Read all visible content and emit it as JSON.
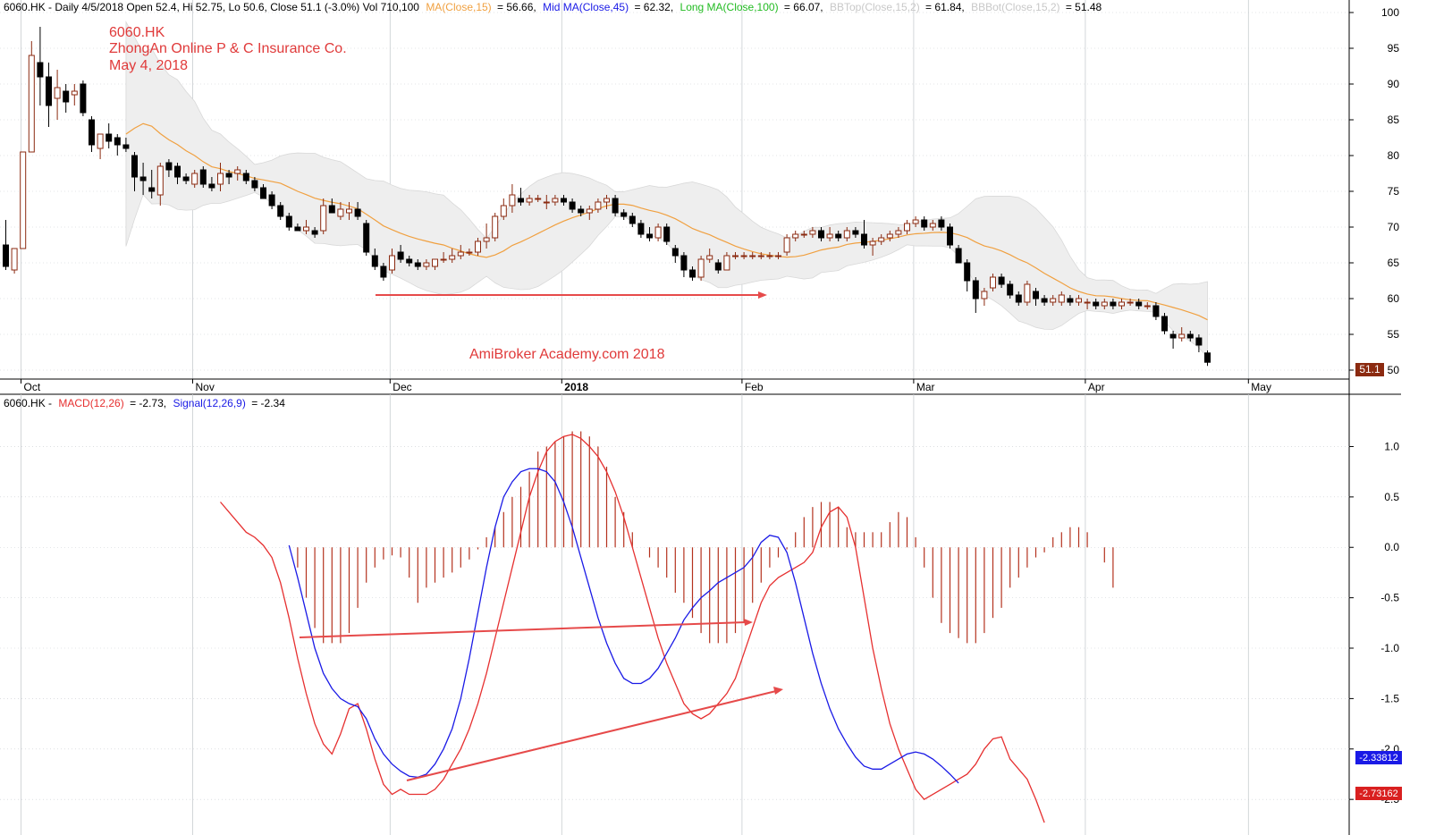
{
  "window": {
    "background": "#ffffff",
    "grid_color": "#c8ccd0",
    "axis_color": "#000000"
  },
  "price_header": {
    "symbol_info": "6060.HK - Daily 4/5/2018 Open 52.4, Hi 52.75, Lo 50.6, Close 51.1 (-3.0%) Vol 710,100",
    "ma15": "MA(Close,15)",
    "ma15_value": "= 56.66,",
    "mid_ma": "Mid MA(Close,45)",
    "mid_ma_value": "= 62.32,",
    "long_ma": "Long MA(Close,100)",
    "long_ma_value": "= 66.07,",
    "bbtop": "BBTop(Close,15,2)",
    "bbtop_value": "= 61.84,",
    "bbbot": "BBBot(Close,15,2)",
    "bbbot_value": "= 51.48",
    "colors": {
      "ma15": "#f0a040",
      "mid_ma": "#1a1ae6",
      "long_ma": "#22bb22",
      "bb": "#c8c8c8"
    }
  },
  "annotations": {
    "symbol": "6060.HK",
    "company": "ZhongAn Online P & C Insurance Co.",
    "date": "May 4, 2018",
    "watermark": "AmiBroker Academy.com   2018",
    "color": "#e03a3a"
  },
  "macd_header": {
    "prefix": "6060.HK -",
    "macd": "MACD(12,26)",
    "macd_value": "= -2.73,",
    "signal": "Signal(12,26,9)",
    "signal_value": "= -2.34",
    "colors": {
      "macd": "#e63030",
      "signal": "#1a1ae6",
      "histogram": "#b4321e"
    }
  },
  "badges": {
    "price": "51.1",
    "signal": "-2.33812",
    "macd": "-2.73162"
  },
  "chart_data": [
    {
      "type": "candlestick",
      "title": "6060.HK",
      "x_ticks": [
        "Oct",
        "Nov",
        "Dec",
        "2018",
        "Feb",
        "Mar",
        "Apr",
        "May"
      ],
      "x_tick_index": [
        0,
        20,
        43,
        63,
        84,
        104,
        124,
        143
      ],
      "y_ticks": [
        50,
        55,
        60,
        65,
        70,
        75,
        80,
        85,
        90,
        95,
        100
      ],
      "ylim": [
        49,
        101
      ],
      "last_close": 51.1,
      "colors": {
        "up_body": "#ffffff",
        "up_border": "#8b2a10",
        "down": "#000000",
        "band_fill": "#eeeeee",
        "ma15": "#f0a040"
      },
      "ohlc": [
        [
          67.5,
          71,
          64,
          64.5
        ],
        [
          64,
          67,
          63.5,
          67
        ],
        [
          67,
          80.5,
          67,
          80.5
        ],
        [
          80.5,
          96,
          80.5,
          94
        ],
        [
          93,
          98,
          87,
          91
        ],
        [
          91,
          93,
          84,
          87
        ],
        [
          88,
          92,
          85,
          89.5
        ],
        [
          89,
          90,
          86,
          87.5
        ],
        [
          88.5,
          90,
          87,
          89
        ],
        [
          90,
          90.5,
          85.5,
          86
        ],
        [
          85,
          85.5,
          80.5,
          81.5
        ],
        [
          81,
          82.5,
          79.5,
          83
        ],
        [
          83,
          84.5,
          81,
          82
        ],
        [
          82.5,
          83,
          80,
          81.5
        ],
        [
          81.5,
          82.5,
          80.5,
          81
        ],
        [
          80,
          80.5,
          75,
          77
        ],
        [
          77,
          79,
          74.5,
          76.5
        ],
        [
          75.5,
          78,
          74,
          75
        ],
        [
          74.5,
          79,
          73,
          78.5
        ],
        [
          79,
          79.5,
          77,
          78
        ],
        [
          78.5,
          79,
          76,
          77
        ],
        [
          77,
          77.5,
          76,
          76.5
        ],
        [
          76,
          78,
          75.5,
          77.5
        ],
        [
          78,
          78.5,
          75.5,
          76
        ],
        [
          76,
          77,
          75,
          75.5
        ],
        [
          76,
          79,
          75,
          77.5
        ],
        [
          77.5,
          78,
          76,
          77
        ],
        [
          77.5,
          78.5,
          76.5,
          78
        ],
        [
          77.5,
          78,
          76,
          76.5
        ],
        [
          76.5,
          77,
          75,
          75.5
        ],
        [
          75.5,
          76,
          74,
          74
        ],
        [
          74.5,
          75,
          72.5,
          73
        ],
        [
          73,
          73.5,
          71,
          71.5
        ],
        [
          71.5,
          72,
          69.5,
          70
        ],
        [
          70,
          70.5,
          69.5,
          69.5
        ],
        [
          69.5,
          71,
          69,
          70
        ],
        [
          69.5,
          70,
          68.5,
          69
        ],
        [
          69.5,
          74,
          69,
          73
        ],
        [
          73,
          74,
          72,
          72
        ],
        [
          71.5,
          73.5,
          71,
          72.5
        ],
        [
          72,
          73.5,
          71,
          72.5
        ],
        [
          72.5,
          73.5,
          71,
          71.5
        ],
        [
          70.5,
          71,
          66,
          66.5
        ],
        [
          66,
          67,
          64,
          64.5
        ],
        [
          64.5,
          65,
          62.5,
          63
        ],
        [
          64,
          67,
          63.5,
          66
        ],
        [
          66.5,
          67.5,
          65,
          65.5
        ],
        [
          65.5,
          66,
          64.5,
          65
        ],
        [
          65,
          65.5,
          64,
          64.5
        ],
        [
          64.5,
          65.5,
          64,
          65
        ],
        [
          64.5,
          65.5,
          64,
          65.5
        ],
        [
          65.5,
          66.5,
          65,
          65.5
        ],
        [
          65.5,
          67,
          65,
          66
        ],
        [
          66,
          67.5,
          65.5,
          66.5
        ],
        [
          66.5,
          67,
          66,
          66.5
        ],
        [
          66.5,
          68.5,
          66,
          68
        ],
        [
          68,
          70.5,
          67,
          68.5
        ],
        [
          68.5,
          72,
          68,
          71.5
        ],
        [
          71.5,
          74,
          71,
          73
        ],
        [
          73,
          76,
          72,
          74.5
        ],
        [
          74,
          75.5,
          73,
          73.5
        ],
        [
          73.5,
          74.5,
          73,
          74
        ],
        [
          74,
          74.5,
          73.5,
          74
        ],
        [
          73.5,
          74.5,
          72.5,
          73.5
        ],
        [
          73.5,
          74.5,
          73,
          74
        ],
        [
          74,
          74.5,
          73,
          73.5
        ],
        [
          73.5,
          74,
          72,
          72.5
        ],
        [
          72.5,
          73,
          71.5,
          72
        ],
        [
          72,
          73,
          71,
          72.5
        ],
        [
          72.5,
          74,
          72,
          73.5
        ],
        [
          73.5,
          74.5,
          72.5,
          74
        ],
        [
          74,
          74.5,
          71.5,
          72
        ],
        [
          72,
          72.5,
          71,
          71.5
        ],
        [
          71.5,
          72,
          70,
          70.5
        ],
        [
          70.5,
          71,
          68.5,
          69
        ],
        [
          69,
          70,
          68,
          68.5
        ],
        [
          68.5,
          70.5,
          68,
          70
        ],
        [
          70,
          70.5,
          67.5,
          68
        ],
        [
          67,
          67.5,
          65,
          66
        ],
        [
          66,
          66.5,
          63,
          64
        ],
        [
          64,
          64.5,
          62.5,
          63
        ],
        [
          63,
          66,
          62.5,
          65.5
        ],
        [
          65.5,
          67,
          65,
          66
        ],
        [
          65,
          65.5,
          63.5,
          64
        ],
        [
          64,
          66.5,
          64,
          66
        ],
        [
          66,
          66.5,
          65.5,
          66
        ],
        [
          66,
          66.5,
          65.5,
          66
        ],
        [
          66,
          66.5,
          65.5,
          66
        ],
        [
          66,
          66.5,
          65.5,
          66
        ],
        [
          66,
          66.5,
          65.5,
          66
        ],
        [
          66,
          66.5,
          65.5,
          66
        ],
        [
          66.5,
          69,
          66,
          68.5
        ],
        [
          68.5,
          69.5,
          68,
          69
        ],
        [
          69,
          69.5,
          68.5,
          69
        ],
        [
          69,
          70,
          68.5,
          69.5
        ],
        [
          69.5,
          70,
          68,
          68.5
        ],
        [
          68.5,
          70,
          68,
          69
        ],
        [
          69,
          69.5,
          68,
          68.5
        ],
        [
          68.5,
          70,
          68,
          69.5
        ],
        [
          69.5,
          70,
          68.5,
          69
        ],
        [
          69,
          71,
          67,
          67.5
        ],
        [
          67.5,
          68.5,
          66,
          68
        ],
        [
          68,
          69,
          67.5,
          68.5
        ],
        [
          68.5,
          69.5,
          68,
          69
        ],
        [
          69,
          70,
          68.5,
          69.5
        ],
        [
          69.5,
          71,
          69,
          70.5
        ],
        [
          70.5,
          71.5,
          70,
          71
        ],
        [
          71,
          71.5,
          69.5,
          70
        ],
        [
          70,
          71,
          69.5,
          70.5
        ],
        [
          71,
          71.5,
          69.5,
          70
        ],
        [
          70,
          70.5,
          67,
          67.5
        ],
        [
          67,
          67.5,
          65,
          65
        ],
        [
          65,
          65.5,
          61,
          62.5
        ],
        [
          62.5,
          63,
          58,
          60
        ],
        [
          60,
          61.5,
          59,
          61
        ],
        [
          61.5,
          63.5,
          61,
          63
        ],
        [
          63,
          63.5,
          61.5,
          62
        ],
        [
          62,
          62.5,
          60,
          60.5
        ],
        [
          60.5,
          61,
          59,
          59.5
        ],
        [
          59.5,
          62.5,
          59,
          62
        ],
        [
          61,
          61.5,
          59,
          60
        ],
        [
          60,
          60.5,
          59,
          59.5
        ],
        [
          59.5,
          60.5,
          59,
          60
        ],
        [
          59.5,
          61,
          59,
          60.5
        ],
        [
          60,
          60.5,
          59,
          59.5
        ],
        [
          59.5,
          60.5,
          59,
          60
        ],
        [
          59.5,
          60,
          58.5,
          59.5
        ],
        [
          59.5,
          60,
          58.5,
          59
        ],
        [
          59,
          60,
          58.5,
          59.5
        ],
        [
          59.5,
          60,
          58.5,
          59
        ],
        [
          59,
          60,
          58.5,
          59.5
        ],
        [
          59.5,
          60,
          59,
          59.5
        ],
        [
          59.5,
          60,
          58.5,
          59
        ],
        [
          59,
          59.5,
          58.5,
          59
        ],
        [
          59,
          59.5,
          57,
          57.5
        ],
        [
          57.5,
          58,
          55,
          55.5
        ],
        [
          55,
          55.5,
          53,
          54.5
        ],
        [
          54.5,
          56,
          54,
          55
        ],
        [
          55,
          55.5,
          54,
          54.5
        ],
        [
          54.5,
          55,
          52.5,
          53.5
        ],
        [
          52.4,
          52.75,
          50.6,
          51.1
        ]
      ]
    },
    {
      "type": "line",
      "title": "MACD(12,26)",
      "y_ticks": [
        -2.5,
        -2.0,
        -1.5,
        -1.0,
        -0.5,
        0.0,
        0.5,
        1.0
      ],
      "ylim": [
        -2.8,
        1.35
      ],
      "series": [
        {
          "name": "MACD(12,26)",
          "color": "#e63030",
          "start_index": 25,
          "values": [
            0.45,
            0.35,
            0.25,
            0.15,
            0.1,
            0.02,
            -0.1,
            -0.35,
            -0.7,
            -1.1,
            -1.45,
            -1.75,
            -1.95,
            -2.05,
            -1.85,
            -1.6,
            -1.55,
            -1.8,
            -2.1,
            -2.35,
            -2.45,
            -2.4,
            -2.45,
            -2.45,
            -2.45,
            -2.4,
            -2.3,
            -2.15,
            -2.0,
            -1.8,
            -1.55,
            -1.25,
            -0.9,
            -0.55,
            -0.2,
            0.15,
            0.5,
            0.75,
            0.95,
            1.05,
            1.1,
            1.12,
            1.08,
            1.0,
            0.9,
            0.75,
            0.55,
            0.3,
            0.0,
            -0.3,
            -0.6,
            -0.9,
            -1.15,
            -1.35,
            -1.55,
            -1.65,
            -1.7,
            -1.65,
            -1.55,
            -1.45,
            -1.3,
            -1.05,
            -0.8,
            -0.55,
            -0.38,
            -0.3,
            -0.25,
            -0.2,
            -0.15,
            -0.05,
            0.2,
            0.35,
            0.4,
            0.3,
            0.0,
            -0.5,
            -1.0,
            -1.4,
            -1.75,
            -2.0,
            -2.2,
            -2.4,
            -2.5,
            -2.45,
            -2.4,
            -2.35,
            -2.3,
            -2.25,
            -2.15,
            -2.0,
            -1.9,
            -1.88,
            -2.1,
            -2.2,
            -2.3,
            -2.5,
            -2.73
          ]
        },
        {
          "name": "Signal(12,26,9)",
          "color": "#1a1ae6",
          "start_index": 33,
          "values": [
            0.02,
            -0.3,
            -0.65,
            -1.0,
            -1.25,
            -1.4,
            -1.5,
            -1.55,
            -1.58,
            -1.7,
            -1.9,
            -2.05,
            -2.15,
            -2.22,
            -2.27,
            -2.28,
            -2.25,
            -2.15,
            -2.0,
            -1.8,
            -1.5,
            -1.1,
            -0.65,
            -0.2,
            0.2,
            0.5,
            0.65,
            0.75,
            0.78,
            0.78,
            0.75,
            0.65,
            0.45,
            0.2,
            -0.1,
            -0.4,
            -0.7,
            -0.95,
            -1.15,
            -1.3,
            -1.35,
            -1.35,
            -1.3,
            -1.2,
            -1.05,
            -0.9,
            -0.72,
            -0.6,
            -0.5,
            -0.43,
            -0.35,
            -0.3,
            -0.25,
            -0.2,
            -0.1,
            0.05,
            0.12,
            0.1,
            -0.05,
            -0.35,
            -0.7,
            -1.05,
            -1.35,
            -1.6,
            -1.8,
            -1.95,
            -2.08,
            -2.17,
            -2.2,
            -2.2,
            -2.15,
            -2.1,
            -2.05,
            -2.03,
            -2.05,
            -2.1,
            -2.17,
            -2.25,
            -2.33812
          ]
        },
        {
          "name": "Histogram",
          "type": "bar",
          "color": "#b4321e",
          "start_index": 33,
          "values": [
            0.0,
            -0.2,
            -0.5,
            -0.8,
            -0.95,
            -0.95,
            -0.95,
            -0.85,
            -0.6,
            -0.35,
            -0.2,
            -0.12,
            -0.08,
            -0.1,
            -0.3,
            -0.55,
            -0.4,
            -0.35,
            -0.3,
            -0.25,
            -0.2,
            -0.12,
            -0.02,
            0.1,
            0.2,
            0.35,
            0.5,
            0.6,
            0.75,
            0.95,
            1.0,
            1.05,
            1.1,
            1.15,
            1.15,
            1.1,
            1.0,
            0.8,
            0.5,
            0.35,
            0.15,
            0.0,
            -0.1,
            -0.2,
            -0.3,
            -0.45,
            -0.55,
            -0.7,
            -0.85,
            -0.95,
            -0.95,
            -0.95,
            -0.85,
            -0.75,
            -0.55,
            -0.35,
            -0.2,
            -0.1,
            -0.02,
            0.15,
            0.3,
            0.4,
            0.45,
            0.45,
            0.4,
            0.2,
            0.15,
            0.15,
            0.15,
            0.15,
            0.25,
            0.35,
            0.3,
            0.1,
            -0.2,
            -0.5,
            -0.75,
            -0.85,
            -0.9,
            -0.95,
            -0.95,
            -0.85,
            -0.7,
            -0.6,
            -0.4,
            -0.3,
            -0.2,
            -0.1,
            -0.05,
            0.1,
            0.15,
            0.2,
            0.2,
            0.15,
            0.0,
            -0.15,
            -0.4
          ]
        }
      ]
    }
  ]
}
